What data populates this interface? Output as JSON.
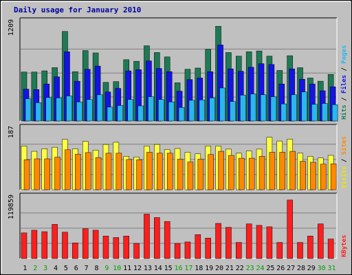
{
  "chart_data": {
    "type": "bar",
    "title": "Daily usage for January 2010",
    "categories": [
      "1",
      "2",
      "3",
      "4",
      "5",
      "6",
      "7",
      "8",
      "9",
      "10",
      "11",
      "12",
      "13",
      "14",
      "15",
      "16",
      "17",
      "18",
      "19",
      "20",
      "21",
      "22",
      "23",
      "24",
      "25",
      "26",
      "27",
      "28",
      "29",
      "30",
      "31"
    ],
    "weekend_days": [
      "2",
      "3",
      "9",
      "10",
      "16",
      "17",
      "23",
      "24",
      "30",
      "31"
    ],
    "panels": [
      {
        "id": "hits",
        "ymax_label": "1209",
        "ylim": [
          0,
          1209
        ],
        "series": [
          {
            "name": "Hits",
            "color": "#1e7a55",
            "values": [
              615,
              615,
              630,
              670,
              1125,
              620,
              885,
              855,
              485,
              495,
              770,
              750,
              945,
              860,
              805,
              480,
              650,
              665,
              900,
              1190,
              860,
              815,
              870,
              880,
              815,
              635,
              820,
              670,
              540,
              500,
              585
            ]
          },
          {
            "name": "Files",
            "color": "#1414e6",
            "values": [
              400,
              395,
              465,
              555,
              870,
              500,
              650,
              690,
              365,
              410,
              630,
              645,
              755,
              660,
              620,
              375,
              520,
              540,
              620,
              955,
              655,
              625,
              675,
              720,
              710,
              465,
              655,
              525,
              465,
              380,
              430
            ]
          },
          {
            "name": "Pages",
            "color": "#28b8ee",
            "values": [
              280,
              230,
              295,
              290,
              315,
              240,
              270,
              330,
              175,
              195,
              270,
              190,
              305,
              270,
              240,
              170,
              260,
              265,
              290,
              415,
              245,
              325,
              340,
              330,
              305,
              215,
              330,
              365,
              210,
              220,
              205
            ]
          }
        ]
      },
      {
        "id": "visits",
        "ymax_label": "187",
        "ylim": [
          0,
          187
        ],
        "series": [
          {
            "name": "Visits",
            "color": "#ffff40",
            "values": [
              140,
              123,
              131,
              136,
              161,
              131,
              155,
              127,
              145,
              152,
              107,
              105,
              140,
              145,
              129,
              132,
              120,
              115,
              140,
              140,
              130,
              117,
              124,
              130,
              168,
              156,
              162,
              117,
              107,
              102,
              110
            ]
          },
          {
            "name": "Sites",
            "color": "#ff8800",
            "values": [
              96,
              99,
              99,
              104,
              128,
              114,
              119,
              103,
              117,
              117,
              97,
              96,
              120,
              117,
              117,
              98,
              89,
              98,
              113,
              123,
              110,
              101,
              101,
              107,
              120,
              120,
              123,
              91,
              88,
              82,
              83
            ]
          }
        ]
      },
      {
        "id": "kbytes",
        "ymax_label": "119859",
        "ylim": [
          0,
          119859
        ],
        "series": [
          {
            "name": "KBytes",
            "color": "#ff1e1e",
            "values": [
              52500,
              58000,
              55000,
              70000,
              54000,
              32000,
              61000,
              58000,
              46000,
              43000,
              46000,
              31000,
              91000,
              84000,
              76000,
              31000,
              34000,
              49000,
              42000,
              72000,
              64000,
              33000,
              71000,
              68000,
              65000,
              33000,
              120000,
              33000,
              46000,
              71000,
              40000
            ]
          }
        ]
      }
    ],
    "axis_labels": {
      "hits_panel": [
        {
          "text": "Hits",
          "color": "#1e7a55"
        },
        {
          "text": " / ",
          "color": "#000000"
        },
        {
          "text": "Files",
          "color": "#1414e6"
        },
        {
          "text": " / ",
          "color": "#000000"
        },
        {
          "text": "Pages",
          "color": "#28b8ee"
        }
      ],
      "visits_panel": [
        {
          "text": "Visits",
          "color": "#e8e800"
        },
        {
          "text": " / ",
          "color": "#000000"
        },
        {
          "text": "Sites",
          "color": "#ff8800"
        }
      ],
      "kbytes_panel": [
        {
          "text": "KBytes",
          "color": "#ff1e1e"
        }
      ]
    },
    "colors": {
      "background": "#c0c0c0",
      "weekday_tick": "#000000",
      "weekend_tick": "#00a000",
      "title": "#0000a0"
    }
  }
}
